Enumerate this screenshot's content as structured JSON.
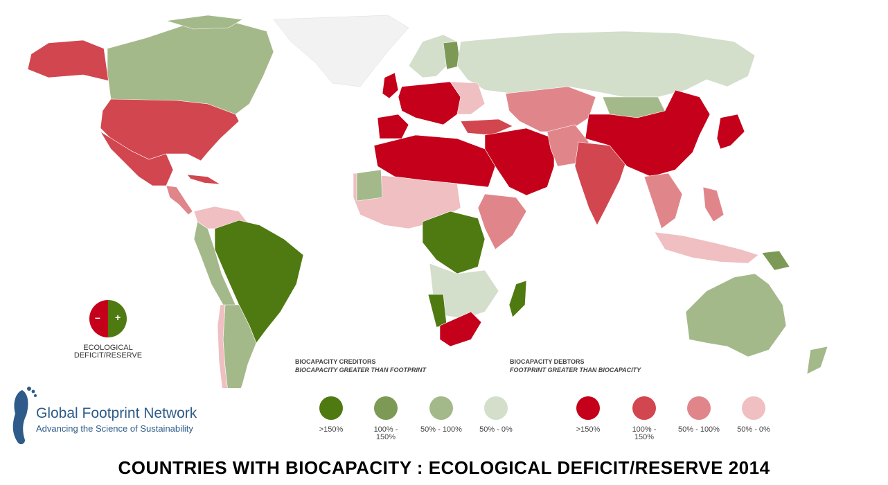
{
  "colors": {
    "creditor_150": "#4f7a12",
    "creditor_100_150": "#7c9a56",
    "creditor_50_100": "#a4b98a",
    "creditor_0_50": "#d3decb",
    "debtor_150": "#c4001a",
    "debtor_100_150": "#d2464f",
    "debtor_50_100": "#e0868a",
    "debtor_0_50": "#efbfc2",
    "no_data": "#f2f2f2",
    "ocean": "#ffffff"
  },
  "regions": [
    {
      "name": "Alaska",
      "category": "debtor_100_150"
    },
    {
      "name": "Canada",
      "category": "creditor_50_100"
    },
    {
      "name": "Greenland",
      "category": "no_data"
    },
    {
      "name": "United States",
      "category": "debtor_100_150"
    },
    {
      "name": "Mexico",
      "category": "debtor_100_150"
    },
    {
      "name": "Cuba",
      "category": "debtor_100_150"
    },
    {
      "name": "Brazil",
      "category": "creditor_150"
    },
    {
      "name": "Argentina",
      "category": "creditor_50_100"
    },
    {
      "name": "Western Europe",
      "category": "debtor_150"
    },
    {
      "name": "Scandinavia",
      "category": "creditor_0_50"
    },
    {
      "name": "Finland",
      "category": "creditor_100_150"
    },
    {
      "name": "Russia",
      "category": "creditor_0_50"
    },
    {
      "name": "North Africa",
      "category": "debtor_150"
    },
    {
      "name": "Central Africa",
      "category": "creditor_150"
    },
    {
      "name": "South Africa",
      "category": "debtor_150"
    },
    {
      "name": "Middle East",
      "category": "debtor_150"
    },
    {
      "name": "China",
      "category": "debtor_150"
    },
    {
      "name": "India",
      "category": "debtor_100_150"
    },
    {
      "name": "Australia",
      "category": "creditor_50_100"
    }
  ],
  "badge": {
    "minus": "–",
    "plus": "+",
    "caption_line1": "ECOLOGICAL",
    "caption_line2": "DEFICIT/RESERVE"
  },
  "legend": {
    "creditors_title": "BIOCAPACITY CREDITORS",
    "creditors_subtitle": "BIOCAPACITY GREATER THAN FOOTPRINT",
    "debtors_title": "BIOCAPACITY DEBTORS",
    "debtors_subtitle": "FOOTPRINT GREATER THAN BIOCAPACITY",
    "creditor_items": [
      {
        "label": ">150%",
        "color": "#4f7a12"
      },
      {
        "label": "100% - 150%",
        "color": "#7c9a56"
      },
      {
        "label": "50% - 100%",
        "color": "#a4b98a"
      },
      {
        "label": "50% - 0%",
        "color": "#d3decb"
      }
    ],
    "debtor_items": [
      {
        "label": ">150%",
        "color": "#c4001a"
      },
      {
        "label": "100% - 150%",
        "color": "#d2464f"
      },
      {
        "label": "50% - 100%",
        "color": "#e0868a"
      },
      {
        "label": "50% - 0%",
        "color": "#efbfc2"
      }
    ]
  },
  "logo": {
    "name": "Global Footprint Network",
    "tagline": "Advancing the Science of Sustainability"
  },
  "title": "COUNTRIES WITH BIOCAPACITY :  ECOLOGICAL DEFICIT/RESERVE  2014"
}
